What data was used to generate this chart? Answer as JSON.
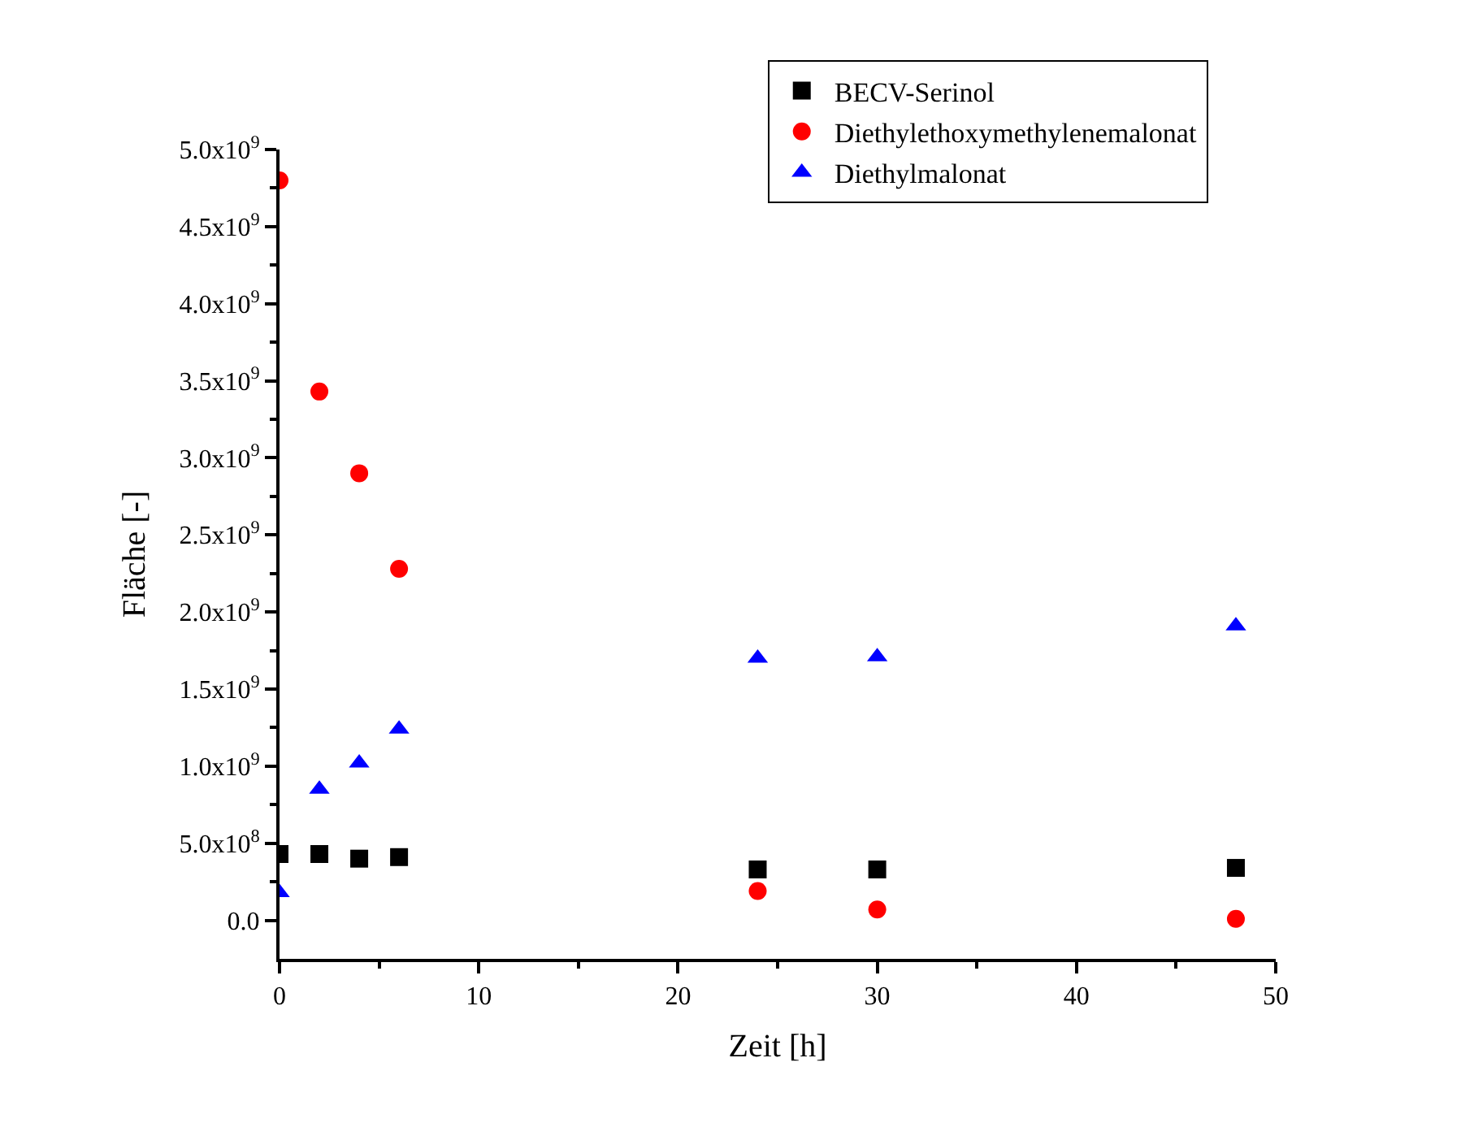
{
  "chart_data": {
    "type": "scatter",
    "xlabel": "Zeit [h]",
    "ylabel": "Fläche [-]",
    "x": [
      0,
      2,
      4,
      6,
      24,
      30,
      48
    ],
    "series": [
      {
        "name": "BECV-Serinol",
        "color": "#000000",
        "marker": "square",
        "values": [
          430000000.0,
          430000000.0,
          400000000.0,
          410000000.0,
          330000000.0,
          330000000.0,
          340000000.0
        ]
      },
      {
        "name": "Diethylethoxymethylenemalonat",
        "color": "#ff0000",
        "marker": "circle",
        "values": [
          4800000000.0,
          3430000000.0,
          2900000000.0,
          2280000000.0,
          190000000.0,
          70000000.0,
          10000000.0
        ]
      },
      {
        "name": "Diethylmalonat",
        "color": "#0000ff",
        "marker": "triangle",
        "values": [
          180000000.0,
          850000000.0,
          1020000000.0,
          1240000000.0,
          1700000000.0,
          1710000000.0,
          1910000000.0
        ]
      }
    ],
    "xlim": [
      0,
      50
    ],
    "xticks": [
      0,
      10,
      20,
      30,
      40,
      50
    ],
    "ylim": [
      -250000000.0,
      5000000000.0
    ],
    "yticks": [
      {
        "value": 0,
        "label": "0.0"
      },
      {
        "value": 500000000.0,
        "label": "5.0x10$^{8}$"
      },
      {
        "value": 1000000000.0,
        "label": "1.0x10$^{9}$"
      },
      {
        "value": 1500000000.0,
        "label": "1.5x10$^{9}$"
      },
      {
        "value": 2000000000.0,
        "label": "2.0x10$^{9}$"
      },
      {
        "value": 2500000000.0,
        "label": "2.5x10$^{9}$"
      },
      {
        "value": 3000000000.0,
        "label": "3.0x10$^{9}$"
      },
      {
        "value": 3500000000.0,
        "label": "3.5x10$^{9}$"
      },
      {
        "value": 4000000000.0,
        "label": "4.0x10$^{9}$"
      },
      {
        "value": 4500000000.0,
        "label": "4.5x10$^{9}$"
      },
      {
        "value": 5000000000.0,
        "label": "5.0x10$^{9}$"
      }
    ],
    "grid": false,
    "legend": "top right"
  }
}
